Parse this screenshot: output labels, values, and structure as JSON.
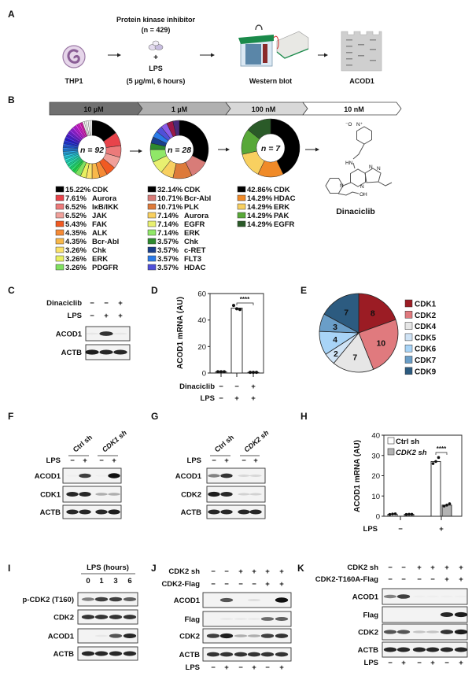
{
  "panel_labels": [
    "A",
    "B",
    "C",
    "D",
    "E",
    "F",
    "G",
    "H",
    "I",
    "J",
    "K"
  ],
  "a": {
    "cell": "THP1",
    "inhibitor": "Protein kinase inhibitor",
    "inhibitor_n": "(n = 429)",
    "plus": "+",
    "lps": "LPS",
    "lps_dose": "(5 µg/ml, 6 hours)",
    "western": "Western blot",
    "readout": "ACOD1"
  },
  "b": {
    "stages": [
      "10 µM",
      "1 µM",
      "100 nM",
      "10 nM"
    ],
    "compound": "Dinaciclib",
    "structure_atoms": [
      "⁻O",
      "N⁺",
      "HN",
      "N",
      "N",
      "N",
      "N",
      "OH"
    ]
  },
  "chart_data": [
    {
      "type": "pie",
      "style": "donut",
      "center_label": "n = 92",
      "legend": [
        {
          "pct": "15.22%",
          "name": "CDK"
        },
        {
          "pct": "7.61%",
          "name": "Aurora"
        },
        {
          "pct": "6.52%",
          "name": "IκB/IKK"
        },
        {
          "pct": "6.52%",
          "name": "JAK"
        },
        {
          "pct": "5.43%",
          "name": "FAK"
        },
        {
          "pct": "4.35%",
          "name": "ALK"
        },
        {
          "pct": "4.35%",
          "name": "Bcr-Abl"
        },
        {
          "pct": "3.26%",
          "name": "Chk"
        },
        {
          "pct": "3.26%",
          "name": "ERK"
        },
        {
          "pct": "3.26%",
          "name": "PDGFR"
        }
      ],
      "values": [
        15.22,
        7.61,
        6.52,
        6.52,
        5.43,
        4.35,
        4.35,
        3.26,
        3.26,
        3.26
      ],
      "colors": [
        "#000000",
        "#e8434a",
        "#ec7a7a",
        "#f0a09a",
        "#f05a22",
        "#f58a35",
        "#f8b84a",
        "#fbe26a",
        "#e8f060",
        "#7fe060"
      ]
    },
    {
      "type": "pie",
      "style": "donut",
      "center_label": "n = 28",
      "legend": [
        {
          "pct": "32.14%",
          "name": "CDK"
        },
        {
          "pct": "10.71%",
          "name": "Bcr-Abl"
        },
        {
          "pct": "10.71%",
          "name": "PLK"
        },
        {
          "pct": "7.14%",
          "name": "Aurora"
        },
        {
          "pct": "7.14%",
          "name": "EGFR"
        },
        {
          "pct": "7.14%",
          "name": "ERK"
        },
        {
          "pct": "3.57%",
          "name": "Chk"
        },
        {
          "pct": "3.57%",
          "name": "c-RET"
        },
        {
          "pct": "3.57%",
          "name": "FLT3"
        },
        {
          "pct": "3.57%",
          "name": "HDAC"
        }
      ],
      "values": [
        32.14,
        10.71,
        10.71,
        7.14,
        7.14,
        7.14,
        3.57,
        3.57,
        3.57,
        3.57
      ],
      "colors": [
        "#000000",
        "#d87c78",
        "#dd7a3a",
        "#f8d060",
        "#e8f070",
        "#90e868",
        "#2e8a2e",
        "#1a3e8a",
        "#2a7ae8",
        "#5050d8"
      ],
      "unlabeled_colors": [
        "#8b5ce8",
        "#9b1848",
        "#4a2a7a"
      ]
    },
    {
      "type": "pie",
      "style": "donut",
      "center_label": "n = 7",
      "legend": [
        {
          "pct": "42.86%",
          "name": "CDK"
        },
        {
          "pct": "14.29%",
          "name": "HDAC"
        },
        {
          "pct": "14.29%",
          "name": "ERK"
        },
        {
          "pct": "14.29%",
          "name": "PAK"
        },
        {
          "pct": "14.29%",
          "name": "EGFR"
        }
      ],
      "values": [
        42.86,
        14.29,
        14.29,
        14.29,
        14.29
      ],
      "colors": [
        "#000000",
        "#f08a28",
        "#f8d060",
        "#58a838",
        "#2a5a28"
      ]
    },
    {
      "type": "pie",
      "labels": [
        "CDK1",
        "CDK2",
        "CDK4",
        "CDK5",
        "CDK6",
        "CDK7",
        "CDK9"
      ],
      "values": [
        8,
        10,
        7,
        2,
        4,
        3,
        7
      ],
      "value_labels": [
        "8",
        "10",
        "7",
        "2",
        "4",
        "3",
        "7"
      ],
      "colors": [
        "#9b1c24",
        "#e07a7e",
        "#e6e6e6",
        "#cfe3f5",
        "#a8d4f7",
        "#6a9ec8",
        "#2c5b80"
      ],
      "legend": "right"
    },
    {
      "type": "bar",
      "ylabel": "ACOD1 mRNA (AU)",
      "ylim": [
        0,
        60
      ],
      "yticks": [
        "0",
        "20",
        "40",
        "60"
      ],
      "treatment_rows": [
        {
          "label": "Dinaciclib",
          "signs": [
            "−",
            "−",
            "+"
          ]
        },
        {
          "label": "LPS",
          "signs": [
            "−",
            "+",
            "+"
          ]
        }
      ],
      "values": [
        1,
        49,
        0.5
      ],
      "points": [
        [
          1,
          1,
          1
        ],
        [
          51,
          48.5,
          48
        ],
        [
          0.5,
          0.5,
          0.5
        ]
      ],
      "significance": "****"
    },
    {
      "type": "bar",
      "ylabel": "ACOD1 mRNA (AU)",
      "ylim": [
        0,
        40
      ],
      "yticks": [
        "0",
        "10",
        "20",
        "30",
        "40"
      ],
      "series": [
        {
          "name": "Ctrl sh",
          "values": [
            1,
            27
          ],
          "points": [
            [
              0.9,
              1.1,
              1.2
            ],
            [
              26,
              27,
              29
            ]
          ],
          "color": "#ffffff"
        },
        {
          "name": "CDK2 sh",
          "values": [
            1,
            5.5
          ],
          "points": [
            [
              0.9,
              1,
              1
            ],
            [
              5,
              5.5,
              6.2
            ]
          ],
          "color": "#b3b3b3"
        }
      ],
      "x_row": {
        "label": "LPS",
        "signs": [
          "−",
          "+"
        ]
      },
      "significance": "****",
      "legend": "top-left"
    }
  ],
  "blots": {
    "c": {
      "rows": [
        {
          "label": "Dinaciclib",
          "signs": [
            "−",
            "−",
            "+"
          ]
        },
        {
          "label": "LPS",
          "signs": [
            "−",
            "+",
            "+"
          ]
        }
      ],
      "bands": [
        {
          "label": "ACOD1",
          "intensity": [
            0.05,
            0.85,
            0.05
          ]
        },
        {
          "label": "ACTB",
          "intensity": [
            0.95,
            0.9,
            0.9
          ]
        }
      ]
    },
    "f": {
      "groups": [
        "Ctrl sh",
        "CDK1 sh"
      ],
      "rows": [
        {
          "label": "LPS",
          "signs": [
            "−",
            "+",
            "−",
            "+"
          ]
        }
      ],
      "bands": [
        {
          "label": "ACOD1",
          "intensity": [
            0.02,
            0.8,
            0.02,
            1
          ]
        },
        {
          "label": "CDK1",
          "intensity": [
            0.9,
            0.9,
            0.3,
            0.3
          ]
        },
        {
          "label": "ACTB",
          "intensity": [
            0.9,
            0.9,
            0.9,
            0.95
          ]
        }
      ]
    },
    "g": {
      "groups": [
        "Ctrl sh",
        "CDK2 sh"
      ],
      "rows": [
        {
          "label": "LPS",
          "signs": [
            "−",
            "+",
            "−",
            "+"
          ]
        }
      ],
      "bands": [
        {
          "label": "ACOD1",
          "intensity": [
            0.5,
            0.85,
            0.12,
            0.12
          ]
        },
        {
          "label": "CDK2",
          "intensity": [
            0.95,
            0.9,
            0.15,
            0.15
          ]
        },
        {
          "label": "ACTB",
          "intensity": [
            0.9,
            0.9,
            0.9,
            0.9
          ]
        }
      ]
    },
    "i": {
      "header": "LPS (hours)",
      "times": [
        "0",
        "1",
        "3",
        "6"
      ],
      "bands": [
        {
          "label": "p-CDK2 (T160)",
          "intensity": [
            0.5,
            0.8,
            0.8,
            0.65
          ]
        },
        {
          "label": "CDK2",
          "intensity": [
            0.85,
            0.85,
            0.85,
            0.85
          ]
        },
        {
          "label": "ACOD1",
          "intensity": [
            0,
            0.05,
            0.7,
            0.9
          ]
        },
        {
          "label": "ACTB",
          "intensity": [
            0.9,
            0.9,
            0.9,
            0.9
          ]
        }
      ]
    },
    "j": {
      "rows": [
        {
          "label": "CDK2 sh",
          "signs": [
            "−",
            "−",
            "+",
            "+",
            "+",
            "+"
          ]
        },
        {
          "label": "CDK2-Flag",
          "signs": [
            "−",
            "−",
            "−",
            "−",
            "+",
            "+"
          ]
        }
      ],
      "bottom_row": {
        "label": "LPS",
        "signs": [
          "−",
          "+",
          "−",
          "+",
          "−",
          "+"
        ]
      },
      "bands": [
        {
          "label": "ACOD1",
          "intensity": [
            0,
            0.7,
            0,
            0.1,
            0,
            1
          ]
        },
        {
          "label": "Flag",
          "intensity": [
            0,
            0.05,
            0.05,
            0.05,
            0.6,
            0.65
          ]
        },
        {
          "label": "CDK2",
          "intensity": [
            0.8,
            0.95,
            0.3,
            0.3,
            0.8,
            0.85
          ]
        },
        {
          "label": "ACTB",
          "intensity": [
            0.85,
            0.85,
            0.85,
            0.85,
            0.85,
            0.85
          ]
        }
      ]
    },
    "k": {
      "rows": [
        {
          "label": "CDK2 sh",
          "signs": [
            "−",
            "−",
            "+",
            "+",
            "+",
            "+"
          ]
        },
        {
          "label": "CDK2-T160A-Flag",
          "signs": [
            "−",
            "−",
            "−",
            "−",
            "+",
            "+"
          ]
        }
      ],
      "bottom_row": {
        "label": "LPS",
        "signs": [
          "−",
          "+",
          "−",
          "+",
          "−",
          "+"
        ]
      },
      "bands": [
        {
          "label": "ACOD1",
          "intensity": [
            0.5,
            0.8,
            0.02,
            0.02,
            0.02,
            0.02
          ]
        },
        {
          "label": "Flag",
          "intensity": [
            0,
            0,
            0,
            0,
            0.9,
            0.95
          ]
        },
        {
          "label": "CDK2",
          "intensity": [
            0.7,
            0.7,
            0.2,
            0.2,
            0.85,
            0.95
          ]
        },
        {
          "label": "ACTB",
          "intensity": [
            0.9,
            0.9,
            0.9,
            0.9,
            0.9,
            0.9
          ]
        }
      ]
    }
  }
}
